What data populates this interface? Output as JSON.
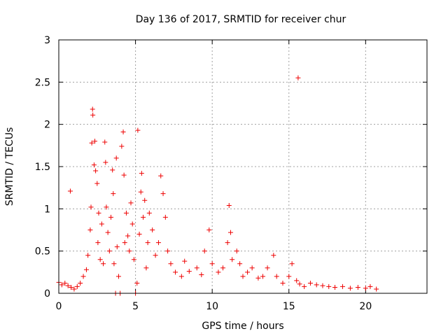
{
  "chart_data": {
    "type": "scatter",
    "title": "Day 136 of 2017, SRMTID for receiver chur",
    "xlabel": "GPS time / hours",
    "ylabel": "SRMTID / TECUs",
    "xlim": [
      0,
      24
    ],
    "ylim": [
      0,
      3
    ],
    "x_ticks": [
      0,
      5,
      10,
      15,
      20
    ],
    "x_tick_labels": [
      "0",
      "5",
      "10",
      "15",
      "20"
    ],
    "y_ticks": [
      0,
      0.5,
      1,
      1.5,
      2,
      2.5,
      3
    ],
    "y_tick_labels": [
      "0",
      "0.5",
      "1",
      "1.5",
      "2",
      "2.5",
      "3"
    ],
    "grid": true,
    "marker": "+",
    "color": "#ee0000",
    "series": [
      {
        "name": "SRMTID",
        "points": [
          [
            0.0,
            0.13
          ],
          [
            0.2,
            0.1
          ],
          [
            0.4,
            0.12
          ],
          [
            0.6,
            0.09
          ],
          [
            0.75,
            1.21
          ],
          [
            0.8,
            0.07
          ],
          [
            1.0,
            0.05
          ],
          [
            1.2,
            0.08
          ],
          [
            1.4,
            0.12
          ],
          [
            1.6,
            0.2
          ],
          [
            1.8,
            0.28
          ],
          [
            1.9,
            0.45
          ],
          [
            2.05,
            0.75
          ],
          [
            2.1,
            1.02
          ],
          [
            2.15,
            1.78
          ],
          [
            2.2,
            2.18
          ],
          [
            2.22,
            2.11
          ],
          [
            2.3,
            1.52
          ],
          [
            2.35,
            1.8
          ],
          [
            2.4,
            1.45
          ],
          [
            2.5,
            1.3
          ],
          [
            2.55,
            0.6
          ],
          [
            2.6,
            0.95
          ],
          [
            2.7,
            0.4
          ],
          [
            2.8,
            0.82
          ],
          [
            2.9,
            0.35
          ],
          [
            3.0,
            1.79
          ],
          [
            3.05,
            1.55
          ],
          [
            3.1,
            1.02
          ],
          [
            3.2,
            0.72
          ],
          [
            3.3,
            0.5
          ],
          [
            3.4,
            0.9
          ],
          [
            3.5,
            1.46
          ],
          [
            3.55,
            1.18
          ],
          [
            3.6,
            0.35
          ],
          [
            3.7,
            0.0
          ],
          [
            3.75,
            1.6
          ],
          [
            3.8,
            0.55
          ],
          [
            3.9,
            0.2
          ],
          [
            4.0,
            0.0
          ],
          [
            4.1,
            1.74
          ],
          [
            4.2,
            1.91
          ],
          [
            4.25,
            1.4
          ],
          [
            4.3,
            0.6
          ],
          [
            4.4,
            0.95
          ],
          [
            4.5,
            0.68
          ],
          [
            4.6,
            0.5
          ],
          [
            4.7,
            1.07
          ],
          [
            4.8,
            0.82
          ],
          [
            4.9,
            0.4
          ],
          [
            5.0,
            0.0
          ],
          [
            5.1,
            0.12
          ],
          [
            5.15,
            1.93
          ],
          [
            5.25,
            0.7
          ],
          [
            5.35,
            1.2
          ],
          [
            5.4,
            1.42
          ],
          [
            5.5,
            0.9
          ],
          [
            5.6,
            1.1
          ],
          [
            5.7,
            0.3
          ],
          [
            5.8,
            0.6
          ],
          [
            5.9,
            0.95
          ],
          [
            6.1,
            0.75
          ],
          [
            6.3,
            0.45
          ],
          [
            6.5,
            0.6
          ],
          [
            6.65,
            1.39
          ],
          [
            6.8,
            1.18
          ],
          [
            6.95,
            0.9
          ],
          [
            7.1,
            0.5
          ],
          [
            7.3,
            0.35
          ],
          [
            7.6,
            0.25
          ],
          [
            8.0,
            0.2
          ],
          [
            8.2,
            0.38
          ],
          [
            8.5,
            0.26
          ],
          [
            9.0,
            0.3
          ],
          [
            9.3,
            0.22
          ],
          [
            9.5,
            0.5
          ],
          [
            9.8,
            0.75
          ],
          [
            10.0,
            0.35
          ],
          [
            10.4,
            0.25
          ],
          [
            10.7,
            0.3
          ],
          [
            11.0,
            0.6
          ],
          [
            11.1,
            1.04
          ],
          [
            11.2,
            0.72
          ],
          [
            11.3,
            0.4
          ],
          [
            11.6,
            0.5
          ],
          [
            11.8,
            0.35
          ],
          [
            12.0,
            0.2
          ],
          [
            12.3,
            0.25
          ],
          [
            12.6,
            0.3
          ],
          [
            13.0,
            0.18
          ],
          [
            13.3,
            0.2
          ],
          [
            13.6,
            0.3
          ],
          [
            14.0,
            0.45
          ],
          [
            14.2,
            0.2
          ],
          [
            14.6,
            0.12
          ],
          [
            15.0,
            0.2
          ],
          [
            15.2,
            0.35
          ],
          [
            15.5,
            0.15
          ],
          [
            15.6,
            2.55
          ],
          [
            15.7,
            0.11
          ],
          [
            16.0,
            0.08
          ],
          [
            16.4,
            0.12
          ],
          [
            16.8,
            0.1
          ],
          [
            17.2,
            0.09
          ],
          [
            17.6,
            0.08
          ],
          [
            18.0,
            0.07
          ],
          [
            18.5,
            0.08
          ],
          [
            19.0,
            0.06
          ],
          [
            19.5,
            0.07
          ],
          [
            20.0,
            0.06
          ],
          [
            20.3,
            0.08
          ],
          [
            20.7,
            0.05
          ]
        ]
      }
    ]
  }
}
